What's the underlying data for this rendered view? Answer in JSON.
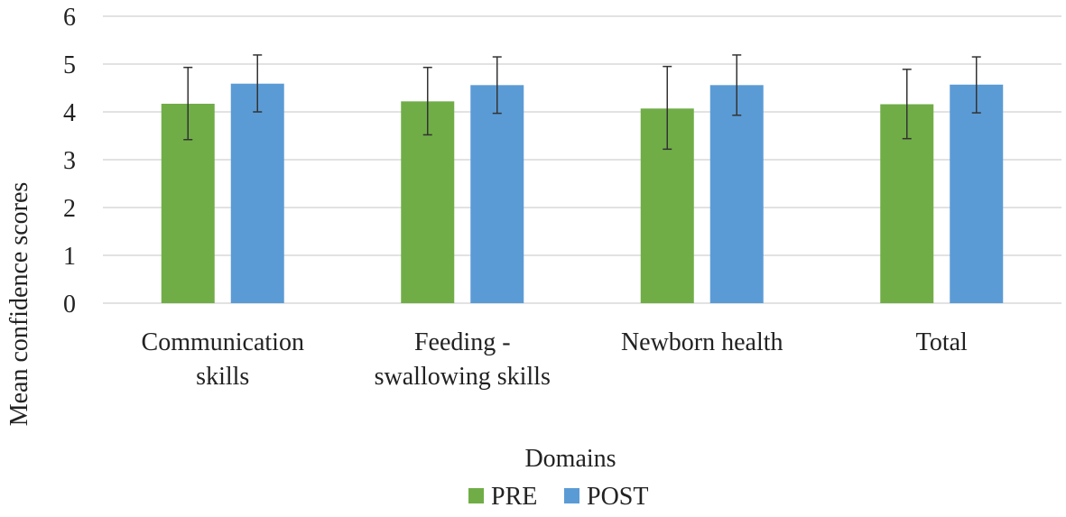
{
  "chart_data": {
    "type": "bar",
    "categories": [
      [
        "Communication",
        "skills"
      ],
      [
        "Feeding -",
        "swallowing skills"
      ],
      [
        "Newborn health"
      ],
      [
        "Total"
      ]
    ],
    "series": [
      {
        "name": "PRE",
        "color": "#70ad47",
        "values": [
          4.17,
          4.22,
          4.07,
          4.16
        ],
        "err_low": [
          3.42,
          3.52,
          3.22,
          3.44
        ],
        "err_high": [
          4.93,
          4.93,
          4.95,
          4.89
        ]
      },
      {
        "name": "POST",
        "color": "#5b9bd5",
        "values": [
          4.59,
          4.56,
          4.56,
          4.57
        ],
        "err_low": [
          4.0,
          3.97,
          3.93,
          3.98
        ],
        "err_high": [
          5.19,
          5.15,
          5.19,
          5.15
        ]
      }
    ],
    "xlabel": "Domains",
    "ylabel": "Mean confidence scores",
    "ylim": [
      0,
      6
    ],
    "yticks": [
      "0",
      "1",
      "2",
      "3",
      "4",
      "5",
      "6"
    ],
    "grid": true,
    "legend_position": "bottom"
  }
}
